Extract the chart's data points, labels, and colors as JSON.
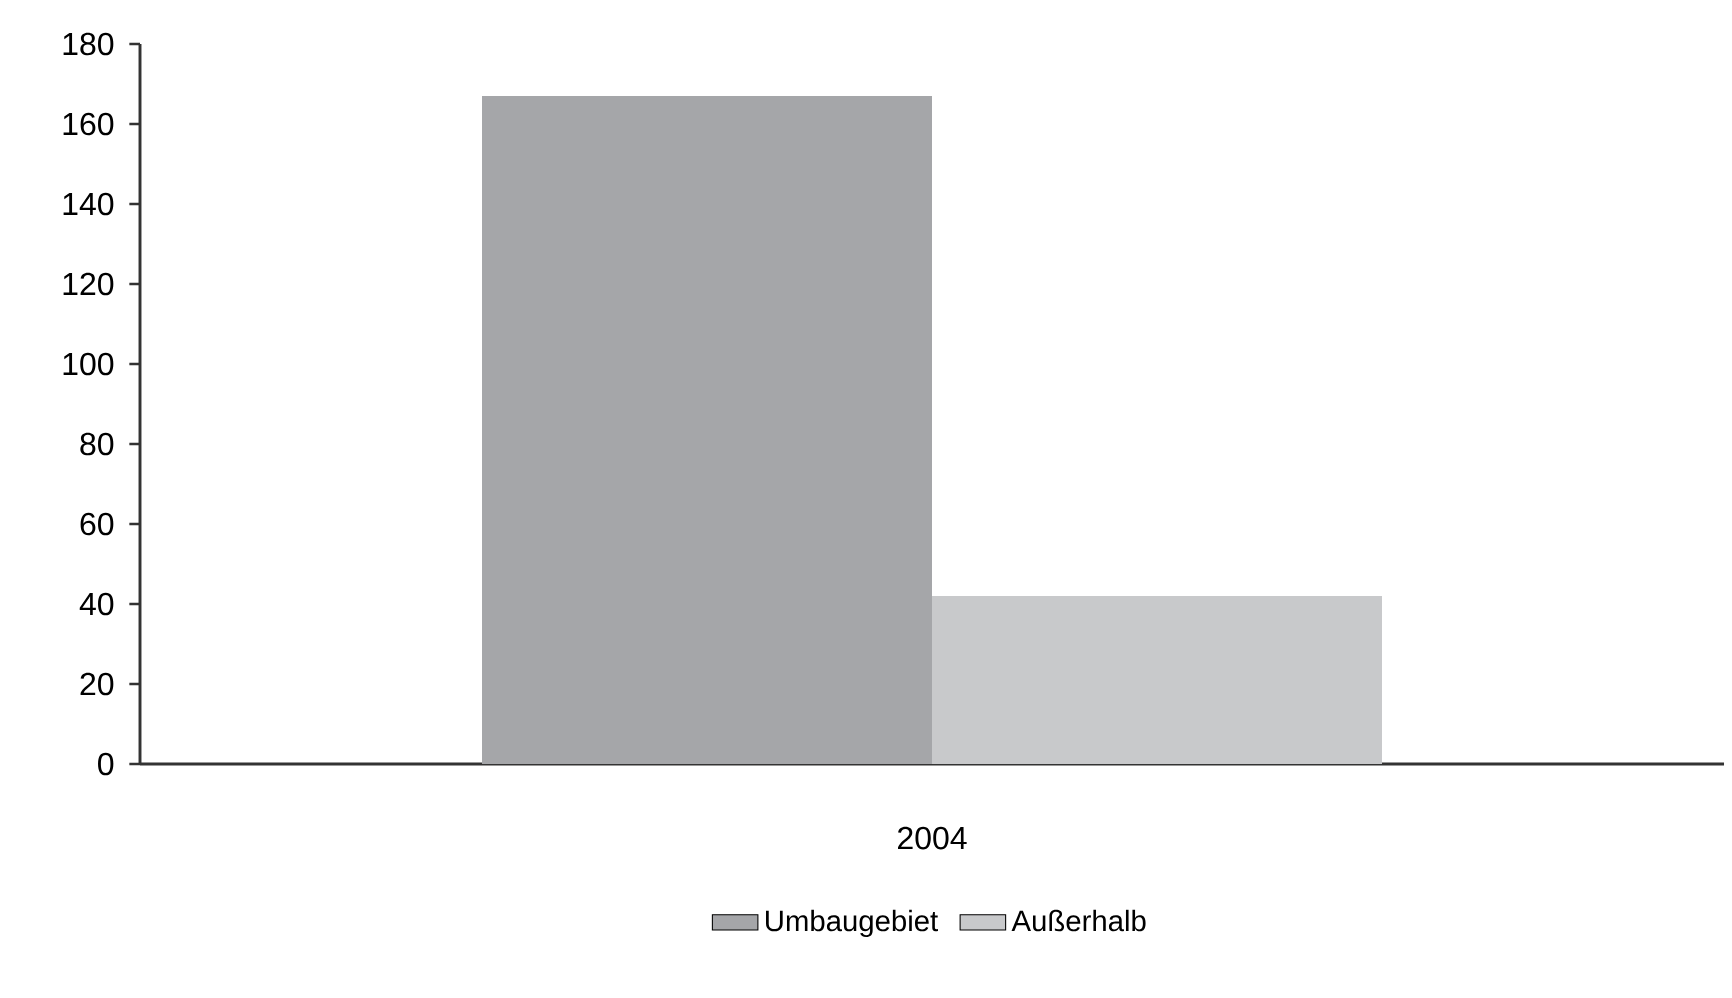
{
  "chart_data": {
    "type": "bar",
    "categories": [
      "2004"
    ],
    "series": [
      {
        "name": "Umbaugebiet",
        "color": "#a5a6a9",
        "values": [
          167
        ]
      },
      {
        "name": "Außerhalb",
        "color": "#c8c9cb",
        "values": [
          42
        ]
      }
    ],
    "ylim": [
      0,
      180
    ],
    "yticks": [
      0,
      20,
      40,
      60,
      80,
      100,
      120,
      140,
      160,
      180
    ],
    "legend": "bottom"
  }
}
